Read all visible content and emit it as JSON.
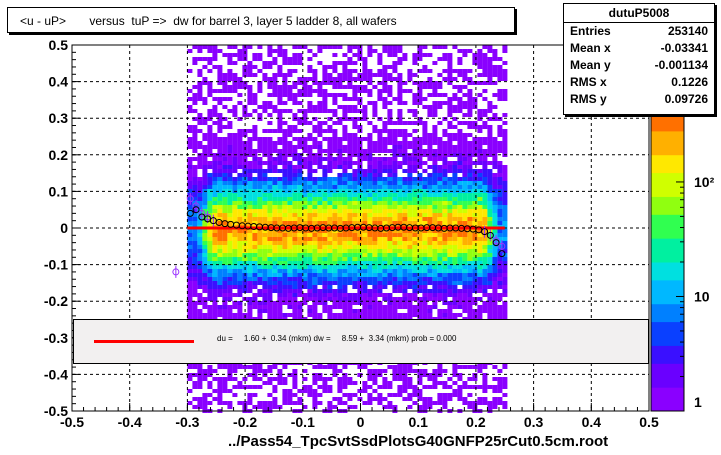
{
  "title": "<u - uP>       versus  tuP =>  dw for barrel 3, layer 5 ladder 8, all wafers",
  "stats": {
    "name": "dutuP5008",
    "rows": [
      {
        "label": "Entries",
        "value": "253140"
      },
      {
        "label": "Mean x",
        "value": "-0.03341"
      },
      {
        "label": "Mean y",
        "value": "-0.001134"
      },
      {
        "label": "RMS x",
        "value": "0.1226"
      },
      {
        "label": "RMS y",
        "value": "0.09726"
      }
    ]
  },
  "x_label": "../Pass54_TpcSvtSsdPlotsG40GNFP25rCut0.5cm.root",
  "fit_text": "du =     1.60 +  0.34 (mkm) dw =     8.59 +  3.34 (mkm) prob = 0.000",
  "colorbar_labels": [
    "10²",
    "10",
    "1"
  ],
  "chart_data": {
    "type": "heatmap",
    "title": "<u - uP>       versus  tuP =>  dw for barrel 3, layer 5 ladder 8, all wafers",
    "xlabel": "../Pass54_TpcSvtSsdPlotsG40GNFP25rCut0.5cm.root",
    "ylabel": "",
    "xlim": [
      -0.5,
      0.5
    ],
    "ylim": [
      -0.5,
      0.5
    ],
    "x_ticks": [
      "-0.5",
      "-0.4",
      "-0.3",
      "-0.2",
      "-0.1",
      "0",
      "0.1",
      "0.2",
      "0.3",
      "0.4",
      "0.5"
    ],
    "y_ticks": [
      "-0.5",
      "-0.4",
      "-0.3",
      "-0.2",
      "-0.1",
      "0",
      "0.1",
      "0.2",
      "0.3",
      "0.4",
      "0.5"
    ],
    "grid": true,
    "density_x_range": [
      -0.3,
      0.25
    ],
    "color_scale": "log",
    "color_range": [
      1,
      400
    ],
    "fit_line": {
      "x": [
        -0.3,
        0.25
      ],
      "y": [
        0.0,
        0.0
      ],
      "color": "#ff0000"
    },
    "profile_black": {
      "x": [
        -0.295,
        -0.285,
        -0.275,
        -0.265,
        -0.255,
        -0.245,
        -0.235,
        -0.225,
        -0.215,
        -0.205,
        -0.195,
        -0.185,
        -0.175,
        -0.165,
        -0.155,
        -0.145,
        -0.135,
        -0.125,
        -0.115,
        -0.105,
        -0.095,
        -0.085,
        -0.075,
        -0.065,
        -0.055,
        -0.045,
        -0.035,
        -0.025,
        -0.015,
        -0.005,
        0.005,
        0.015,
        0.025,
        0.035,
        0.045,
        0.055,
        0.065,
        0.075,
        0.085,
        0.095,
        0.105,
        0.115,
        0.125,
        0.135,
        0.145,
        0.155,
        0.165,
        0.175,
        0.185,
        0.195,
        0.205,
        0.215,
        0.225,
        0.235,
        0.245
      ],
      "y": [
        0.04,
        0.05,
        0.03,
        0.025,
        0.02,
        0.015,
        0.012,
        0.01,
        0.008,
        0.006,
        0.005,
        0.004,
        0.003,
        0.002,
        0.001,
        0.0,
        0.0,
        -0.001,
        0.0,
        0.001,
        0.0,
        -0.001,
        0.0,
        0.001,
        0.0,
        0.0,
        -0.001,
        0.0,
        0.001,
        0.002,
        0.002,
        0.001,
        0.0,
        -0.001,
        0.0,
        0.001,
        0.002,
        0.002,
        0.001,
        0.0,
        0.0,
        0.001,
        0.001,
        0.0,
        -0.001,
        0.0,
        0.0,
        -0.001,
        -0.002,
        -0.003,
        -0.005,
        -0.01,
        -0.02,
        -0.04,
        -0.07
      ]
    },
    "profile_purple": {
      "x": [
        -0.32,
        -0.295,
        -0.285,
        -0.275,
        -0.265,
        -0.255,
        0.215,
        0.225,
        0.235,
        0.245
      ],
      "y": [
        -0.12,
        0.08,
        0.06,
        0.04,
        0.03,
        0.02,
        -0.01,
        -0.02,
        -0.035,
        -0.05
      ]
    }
  }
}
